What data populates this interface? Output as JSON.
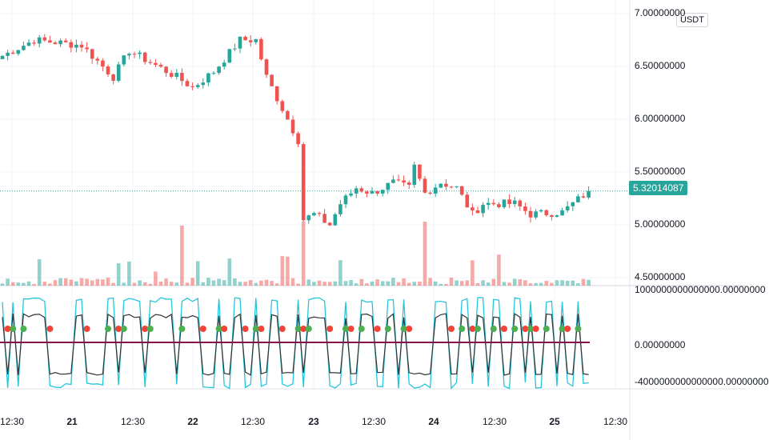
{
  "currency_button": "USDT",
  "last_price": "5.32014087",
  "price_axis": [
    "7.00000000",
    "6.50000000",
    "6.00000000",
    "5.50000000",
    "5.00000000",
    "4.50000000"
  ],
  "indicator_axis": [
    "1000000000000000.00000000",
    "0.00000000",
    "-4000000000000000.00000000"
  ],
  "time_axis": [
    {
      "label": "12:30",
      "bold": false
    },
    {
      "label": "21",
      "bold": true
    },
    {
      "label": "12:30",
      "bold": false
    },
    {
      "label": "22",
      "bold": true
    },
    {
      "label": "12:30",
      "bold": false
    },
    {
      "label": "23",
      "bold": true
    },
    {
      "label": "12:30",
      "bold": false
    },
    {
      "label": "24",
      "bold": true
    },
    {
      "label": "12:30",
      "bold": false
    },
    {
      "label": "25",
      "bold": true
    },
    {
      "label": "12:30",
      "bold": false
    }
  ],
  "colors": {
    "up": "#26a69a",
    "down": "#ef5350",
    "grid": "#f0f3fa",
    "cyan": "#26c6da",
    "black": "#333333",
    "maroon": "#880e4f"
  },
  "chart_data": {
    "type": "candlestick",
    "price_range": [
      4.45,
      7.05
    ],
    "close_keyframes": [
      [
        0,
        6.6
      ],
      [
        6,
        6.75
      ],
      [
        15,
        6.7
      ],
      [
        21,
        6.4
      ],
      [
        24,
        6.65
      ],
      [
        33,
        6.4
      ],
      [
        36,
        6.3
      ],
      [
        40,
        6.45
      ],
      [
        45,
        6.75
      ],
      [
        48,
        6.75
      ],
      [
        50,
        6.4
      ],
      [
        54,
        6.0
      ],
      [
        56,
        5.8
      ],
      [
        57,
        5.05
      ],
      [
        59,
        5.1
      ],
      [
        62,
        5.0
      ],
      [
        64,
        5.2
      ],
      [
        67,
        5.35
      ],
      [
        70,
        5.3
      ],
      [
        74,
        5.4
      ],
      [
        77,
        5.35
      ],
      [
        78,
        5.55
      ],
      [
        80,
        5.3
      ],
      [
        83,
        5.4
      ],
      [
        86,
        5.35
      ],
      [
        89,
        5.1
      ],
      [
        91,
        5.2
      ],
      [
        97,
        5.2
      ],
      [
        100,
        5.1
      ],
      [
        106,
        5.12
      ],
      [
        111,
        5.32
      ]
    ]
  }
}
